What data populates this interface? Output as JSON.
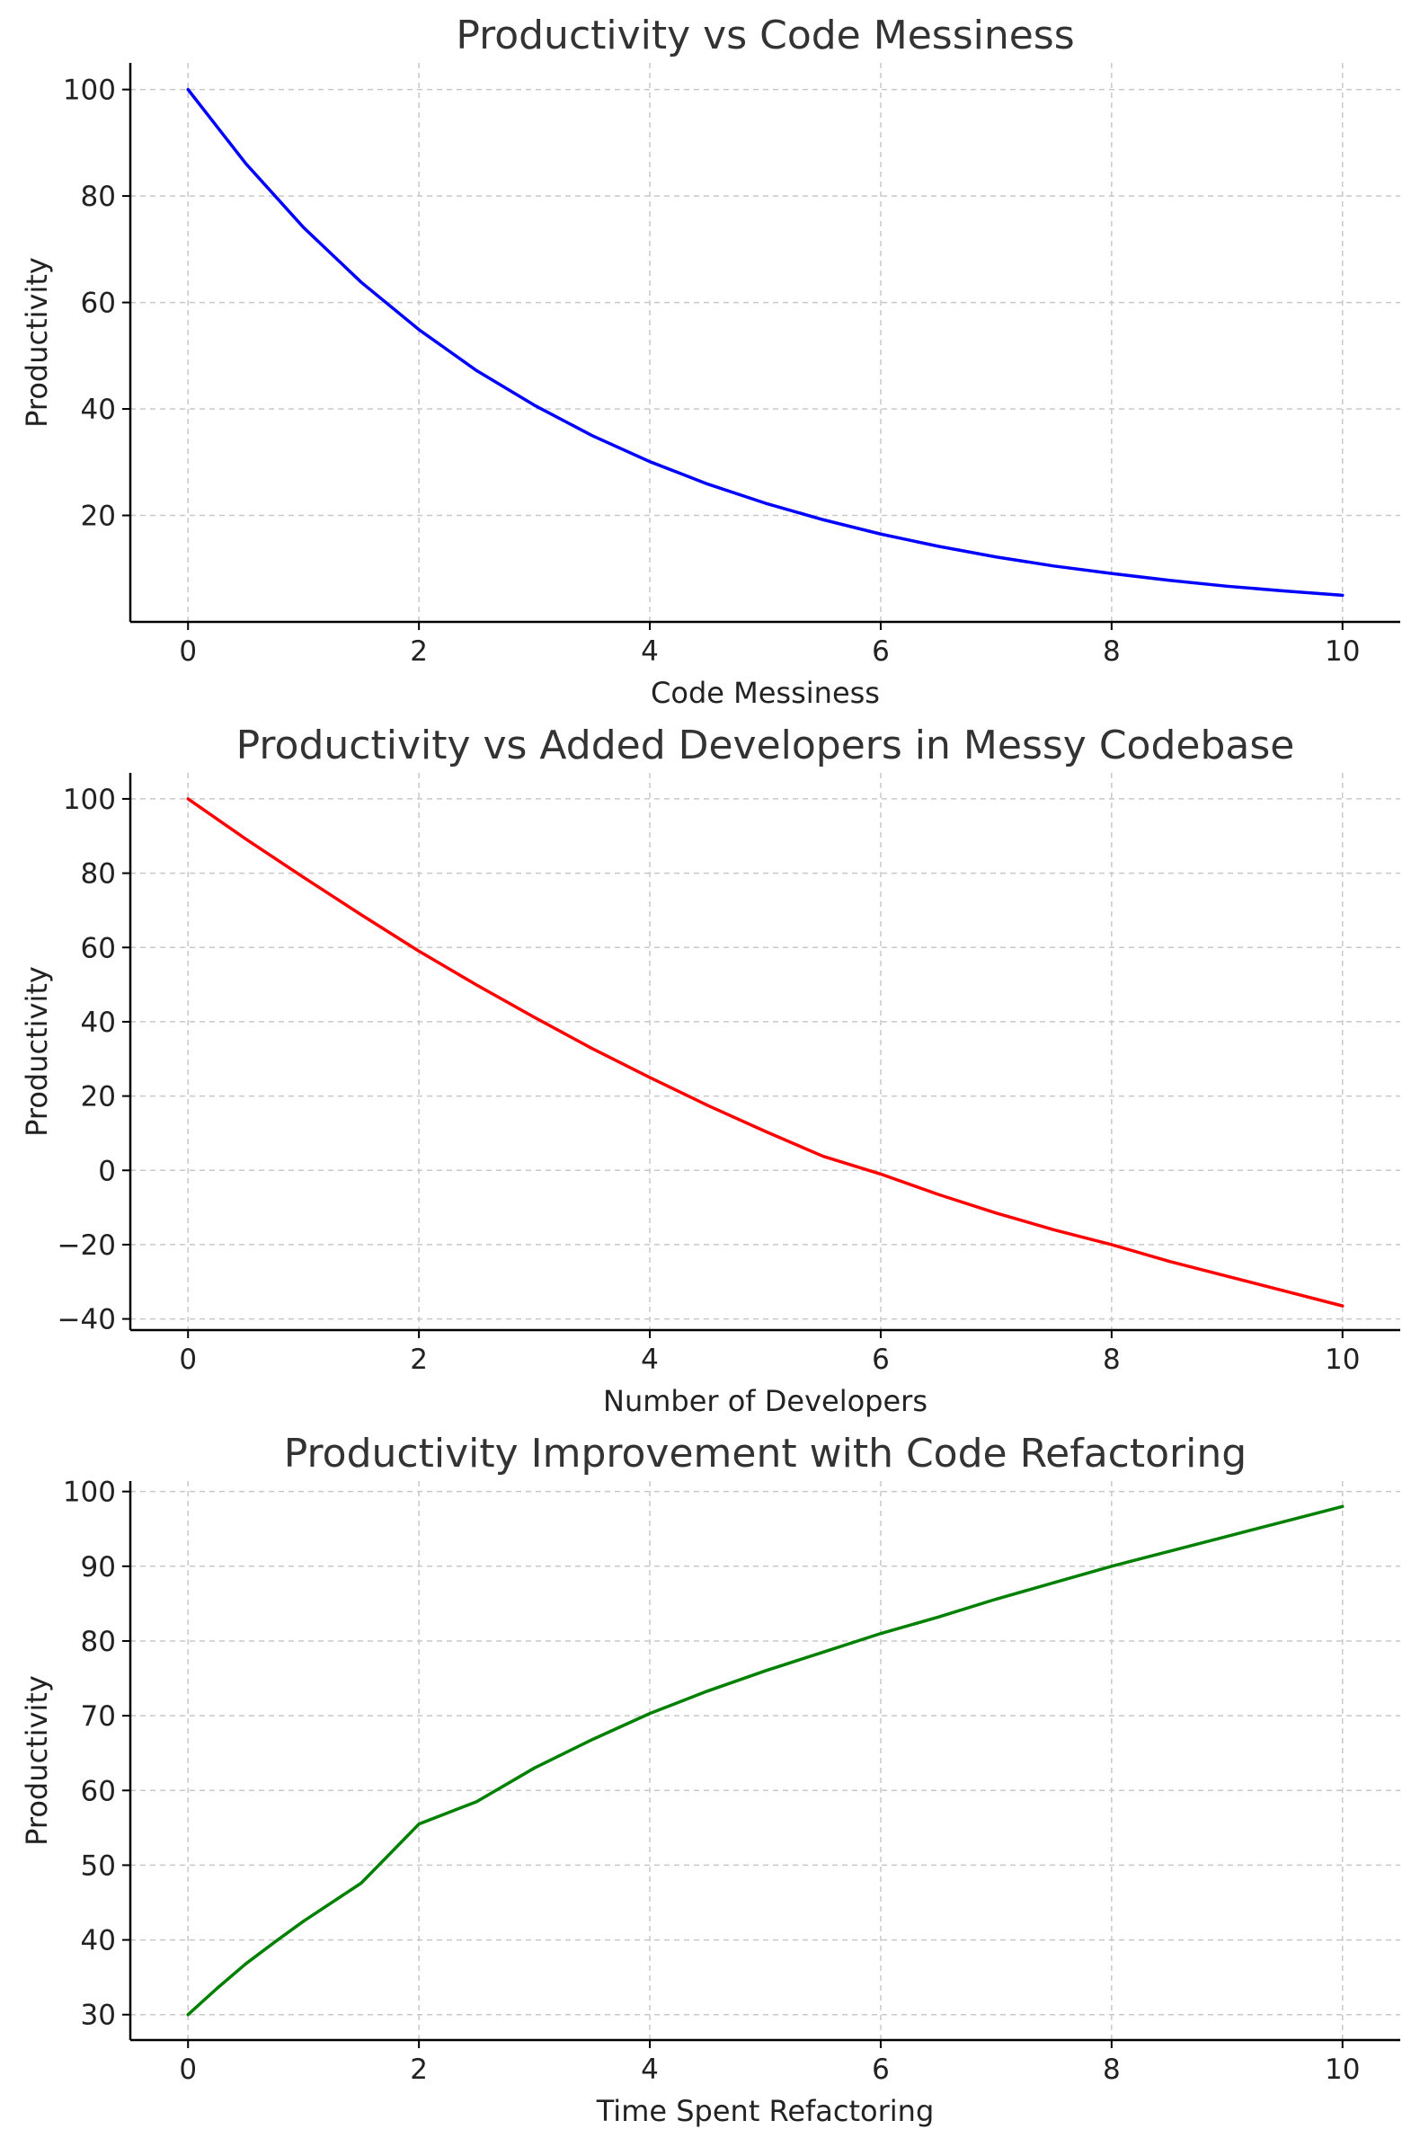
{
  "chart_data": [
    {
      "type": "line",
      "title": "Productivity vs Code Messiness",
      "xlabel": "Code Messiness",
      "ylabel": "Productivity",
      "xlim": [
        -0.5,
        10.5
      ],
      "ylim": [
        0,
        105
      ],
      "xticks": [
        0,
        2,
        4,
        6,
        8,
        10
      ],
      "yticks": [
        20,
        40,
        60,
        80,
        100
      ],
      "grid": true,
      "series": [
        {
          "color": "#0000ff",
          "x": [
            0,
            0.5,
            1,
            1.5,
            2,
            2.5,
            3,
            3.5,
            4,
            4.5,
            5,
            5.5,
            6,
            6.5,
            7,
            7.5,
            8,
            8.5,
            9,
            9.5,
            10
          ],
          "y": [
            100,
            86.1,
            74.1,
            63.8,
            54.9,
            47.2,
            40.7,
            35.0,
            30.1,
            25.9,
            22.3,
            19.2,
            16.5,
            14.2,
            12.2,
            10.5,
            9.1,
            7.8,
            6.7,
            5.8,
            5.0
          ]
        }
      ]
    },
    {
      "type": "line",
      "title": "Productivity vs Added Developers in Messy Codebase",
      "xlabel": "Number of Developers",
      "ylabel": "Productivity",
      "xlim": [
        -0.5,
        10.5
      ],
      "ylim": [
        -43,
        107
      ],
      "xticks": [
        0,
        2,
        4,
        6,
        8,
        10
      ],
      "yticks": [
        -40,
        -20,
        0,
        20,
        40,
        60,
        80,
        100
      ],
      "grid": true,
      "series": [
        {
          "color": "#ff0000",
          "x": [
            0,
            0.5,
            1,
            1.5,
            2,
            2.5,
            3,
            3.5,
            4,
            4.5,
            5,
            5.5,
            6,
            6.5,
            7,
            7.5,
            8,
            8.5,
            9,
            9.5,
            10
          ],
          "y": [
            100,
            89.2,
            78.9,
            68.8,
            59.0,
            49.9,
            41.2,
            32.8,
            25.0,
            17.5,
            10.5,
            3.8,
            -1.0,
            -6.5,
            -11.5,
            -16.0,
            -20.0,
            -24.5,
            -28.5,
            -32.5,
            -36.5
          ]
        }
      ]
    },
    {
      "type": "line",
      "title": "Productivity Improvement with Code Refactoring",
      "xlabel": "Time Spent Refactoring",
      "ylabel": "Productivity",
      "xlim": [
        -0.5,
        10.5
      ],
      "ylim": [
        26.6,
        101.4
      ],
      "xticks": [
        0,
        2,
        4,
        6,
        8,
        10
      ],
      "yticks": [
        30,
        40,
        50,
        60,
        70,
        80,
        90,
        100
      ],
      "grid": true,
      "series": [
        {
          "color": "#008000",
          "x": [
            0,
            0.25,
            0.5,
            0.75,
            1,
            1.5,
            2,
            2.5,
            3,
            3.5,
            4,
            4.5,
            5,
            5.5,
            6,
            6.5,
            7,
            7.5,
            8,
            8.5,
            9,
            9.5,
            10
          ],
          "y": [
            30,
            33.5,
            36.8,
            39.7,
            42.5,
            47.6,
            55.5,
            58.5,
            63.0,
            66.8,
            70.3,
            73.3,
            76.0,
            78.5,
            81.0,
            83.2,
            85.6,
            87.8,
            90.0,
            92.0,
            94.0,
            96.0,
            98.0
          ]
        }
      ]
    }
  ]
}
